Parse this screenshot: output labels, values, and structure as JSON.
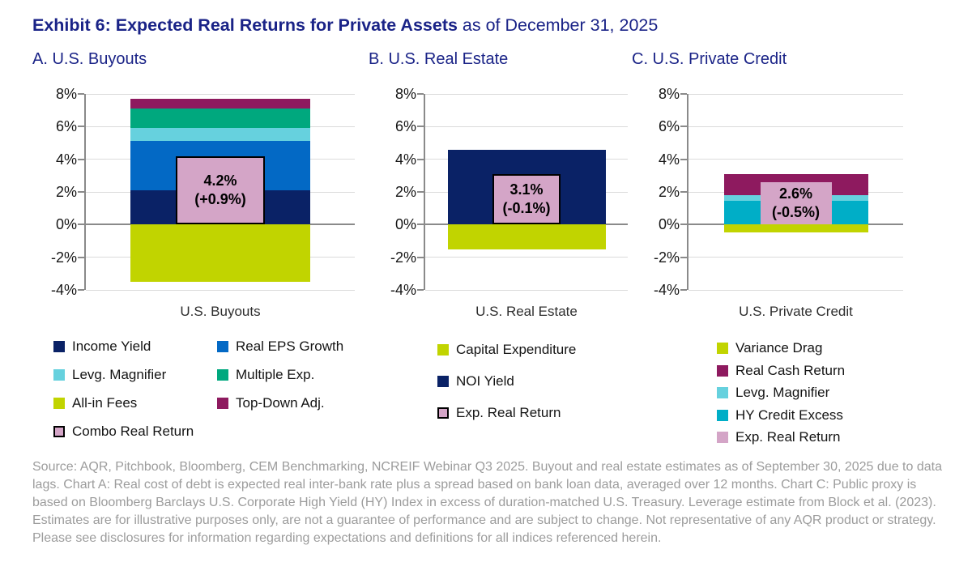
{
  "header": {
    "title_bold": "Exhibit 6: Expected Real Returns for Private Assets",
    "title_regular": " as of December 31, 2025"
  },
  "colors": {
    "title_navy": "#1A2387",
    "navy": "#0A2266",
    "blue": "#0369C5",
    "light_cyan": "#66D1DE",
    "teal_green": "#00A87E",
    "magenta": "#8E1A5F",
    "yellow_green": "#C1D400",
    "teal_cyan": "#00AEC7",
    "pink": "#D4A5C7",
    "gridline": "#DBDBDB",
    "axis_gray": "#8A8A8A"
  },
  "chart_data": [
    {
      "type": "bar",
      "panel_label": "A. U.S. Buyouts",
      "category": "U.S. Buyouts",
      "ylim": [
        -4,
        8
      ],
      "grid": true,
      "yticks": [
        {
          "label": "8%",
          "value": 8
        },
        {
          "label": "6%",
          "value": 6
        },
        {
          "label": "4%",
          "value": 4
        },
        {
          "label": "2%",
          "value": 2
        },
        {
          "label": "0%",
          "value": 0
        },
        {
          "label": "-2%",
          "value": -2
        },
        {
          "label": "-4%",
          "value": -4
        }
      ],
      "segments": [
        {
          "name": "Income Yield",
          "value": 2.1,
          "color": "#0A2266"
        },
        {
          "name": "Real EPS Growth",
          "value": 3.0,
          "color": "#0369C5"
        },
        {
          "name": "Levg. Magnifier",
          "value": 0.8,
          "color": "#66D1DE"
        },
        {
          "name": "Multiple Exp.",
          "value": 1.2,
          "color": "#00A87E"
        },
        {
          "name": "Top-Down Adj.",
          "value": 0.6,
          "color": "#8E1A5F"
        },
        {
          "name": "All-in Fees",
          "value": -3.5,
          "color": "#C1D400"
        }
      ],
      "overlay": {
        "name": "Combo Real Return",
        "value": 4.2,
        "line1": "4.2%",
        "line2": "(+0.9%)",
        "color": "#D4A5C7",
        "bordered": true
      },
      "legend_columns": [
        [
          {
            "label": "Income Yield",
            "color": "#0A2266",
            "bordered": false
          },
          {
            "label": "Levg. Magnifier",
            "color": "#66D1DE",
            "bordered": false
          },
          {
            "label": "All-in Fees",
            "color": "#C1D400",
            "bordered": false
          },
          {
            "label": "Combo Real Return",
            "color": "#D4A5C7",
            "bordered": true
          }
        ],
        [
          {
            "label": "Real EPS Growth",
            "color": "#0369C5",
            "bordered": false
          },
          {
            "label": "Multiple Exp.",
            "color": "#00A87E",
            "bordered": false
          },
          {
            "label": "Top-Down Adj.",
            "color": "#8E1A5F",
            "bordered": false
          }
        ]
      ]
    },
    {
      "type": "bar",
      "panel_label": "B. U.S. Real Estate",
      "category": "U.S. Real Estate",
      "ylim": [
        -4,
        8
      ],
      "grid": true,
      "yticks": [
        {
          "label": "8%",
          "value": 8
        },
        {
          "label": "6%",
          "value": 6
        },
        {
          "label": "4%",
          "value": 4
        },
        {
          "label": "2%",
          "value": 2
        },
        {
          "label": "0%",
          "value": 0
        },
        {
          "label": "-2%",
          "value": -2
        },
        {
          "label": "-4%",
          "value": -4
        }
      ],
      "segments": [
        {
          "name": "NOI Yield",
          "value": 4.6,
          "color": "#0A2266"
        },
        {
          "name": "Capital Expenditure",
          "value": -1.5,
          "color": "#C1D400"
        }
      ],
      "overlay": {
        "name": "Exp. Real Return",
        "value": 3.1,
        "line1": "3.1%",
        "line2": "(-0.1%)",
        "color": "#D4A5C7",
        "bordered": true
      },
      "legend_columns": [
        [
          {
            "label": "Capital Expenditure",
            "color": "#C1D400",
            "bordered": false
          },
          {
            "label": "NOI Yield",
            "color": "#0A2266",
            "bordered": false
          },
          {
            "label": "Exp. Real Return",
            "color": "#D4A5C7",
            "bordered": true
          }
        ]
      ]
    },
    {
      "type": "bar",
      "panel_label": "C. U.S. Private Credit",
      "category": "U.S. Private Credit",
      "ylim": [
        -4,
        8
      ],
      "grid": true,
      "yticks": [
        {
          "label": "8%",
          "value": 8
        },
        {
          "label": "6%",
          "value": 6
        },
        {
          "label": "4%",
          "value": 4
        },
        {
          "label": "2%",
          "value": 2
        },
        {
          "label": "0%",
          "value": 0
        },
        {
          "label": "-2%",
          "value": -2
        },
        {
          "label": "-4%",
          "value": -4
        }
      ],
      "segments": [
        {
          "name": "HY Credit Excess",
          "value": 1.45,
          "color": "#00AEC7"
        },
        {
          "name": "Levg. Magnifier",
          "value": 0.35,
          "color": "#66D1DE"
        },
        {
          "name": "Real Cash Return",
          "value": 1.3,
          "color": "#8E1A5F"
        },
        {
          "name": "Variance Drag",
          "value": -0.5,
          "color": "#C1D400"
        }
      ],
      "overlay": {
        "name": "Exp. Real Return",
        "value": 2.6,
        "line1": "2.6%",
        "line2": "(-0.5%)",
        "color": "#D4A5C7",
        "bordered": false
      },
      "legend_columns": [
        [
          {
            "label": "Variance Drag",
            "color": "#C1D400",
            "bordered": false
          },
          {
            "label": "Real Cash Return",
            "color": "#8E1A5F",
            "bordered": false
          },
          {
            "label": "Levg. Magnifier",
            "color": "#66D1DE",
            "bordered": false
          },
          {
            "label": "HY Credit Excess",
            "color": "#00AEC7",
            "bordered": false
          },
          {
            "label": "Exp. Real Return",
            "color": "#D4A5C7",
            "bordered": false
          }
        ]
      ]
    }
  ],
  "footer": {
    "text": "Source: AQR, Pitchbook, Bloomberg, CEM Benchmarking, NCREIF Webinar Q3 2025. Buyout and real estate estimates as of September 30, 2025 due to data lags. Chart A: Real cost of debt is expected real inter-bank rate plus a spread based on bank loan data, averaged over 12 months. Chart C: Public proxy is based on Bloomberg Barclays U.S. Corporate High Yield (HY) Index in excess of duration-matched U.S. Treasury. Leverage estimate from Block et al. (2023). Estimates are for illustrative purposes only, are not a guarantee of performance and are subject to change. Not representative of any AQR product or strategy. Please see disclosures for information regarding expectations and definitions for all indices referenced herein."
  }
}
